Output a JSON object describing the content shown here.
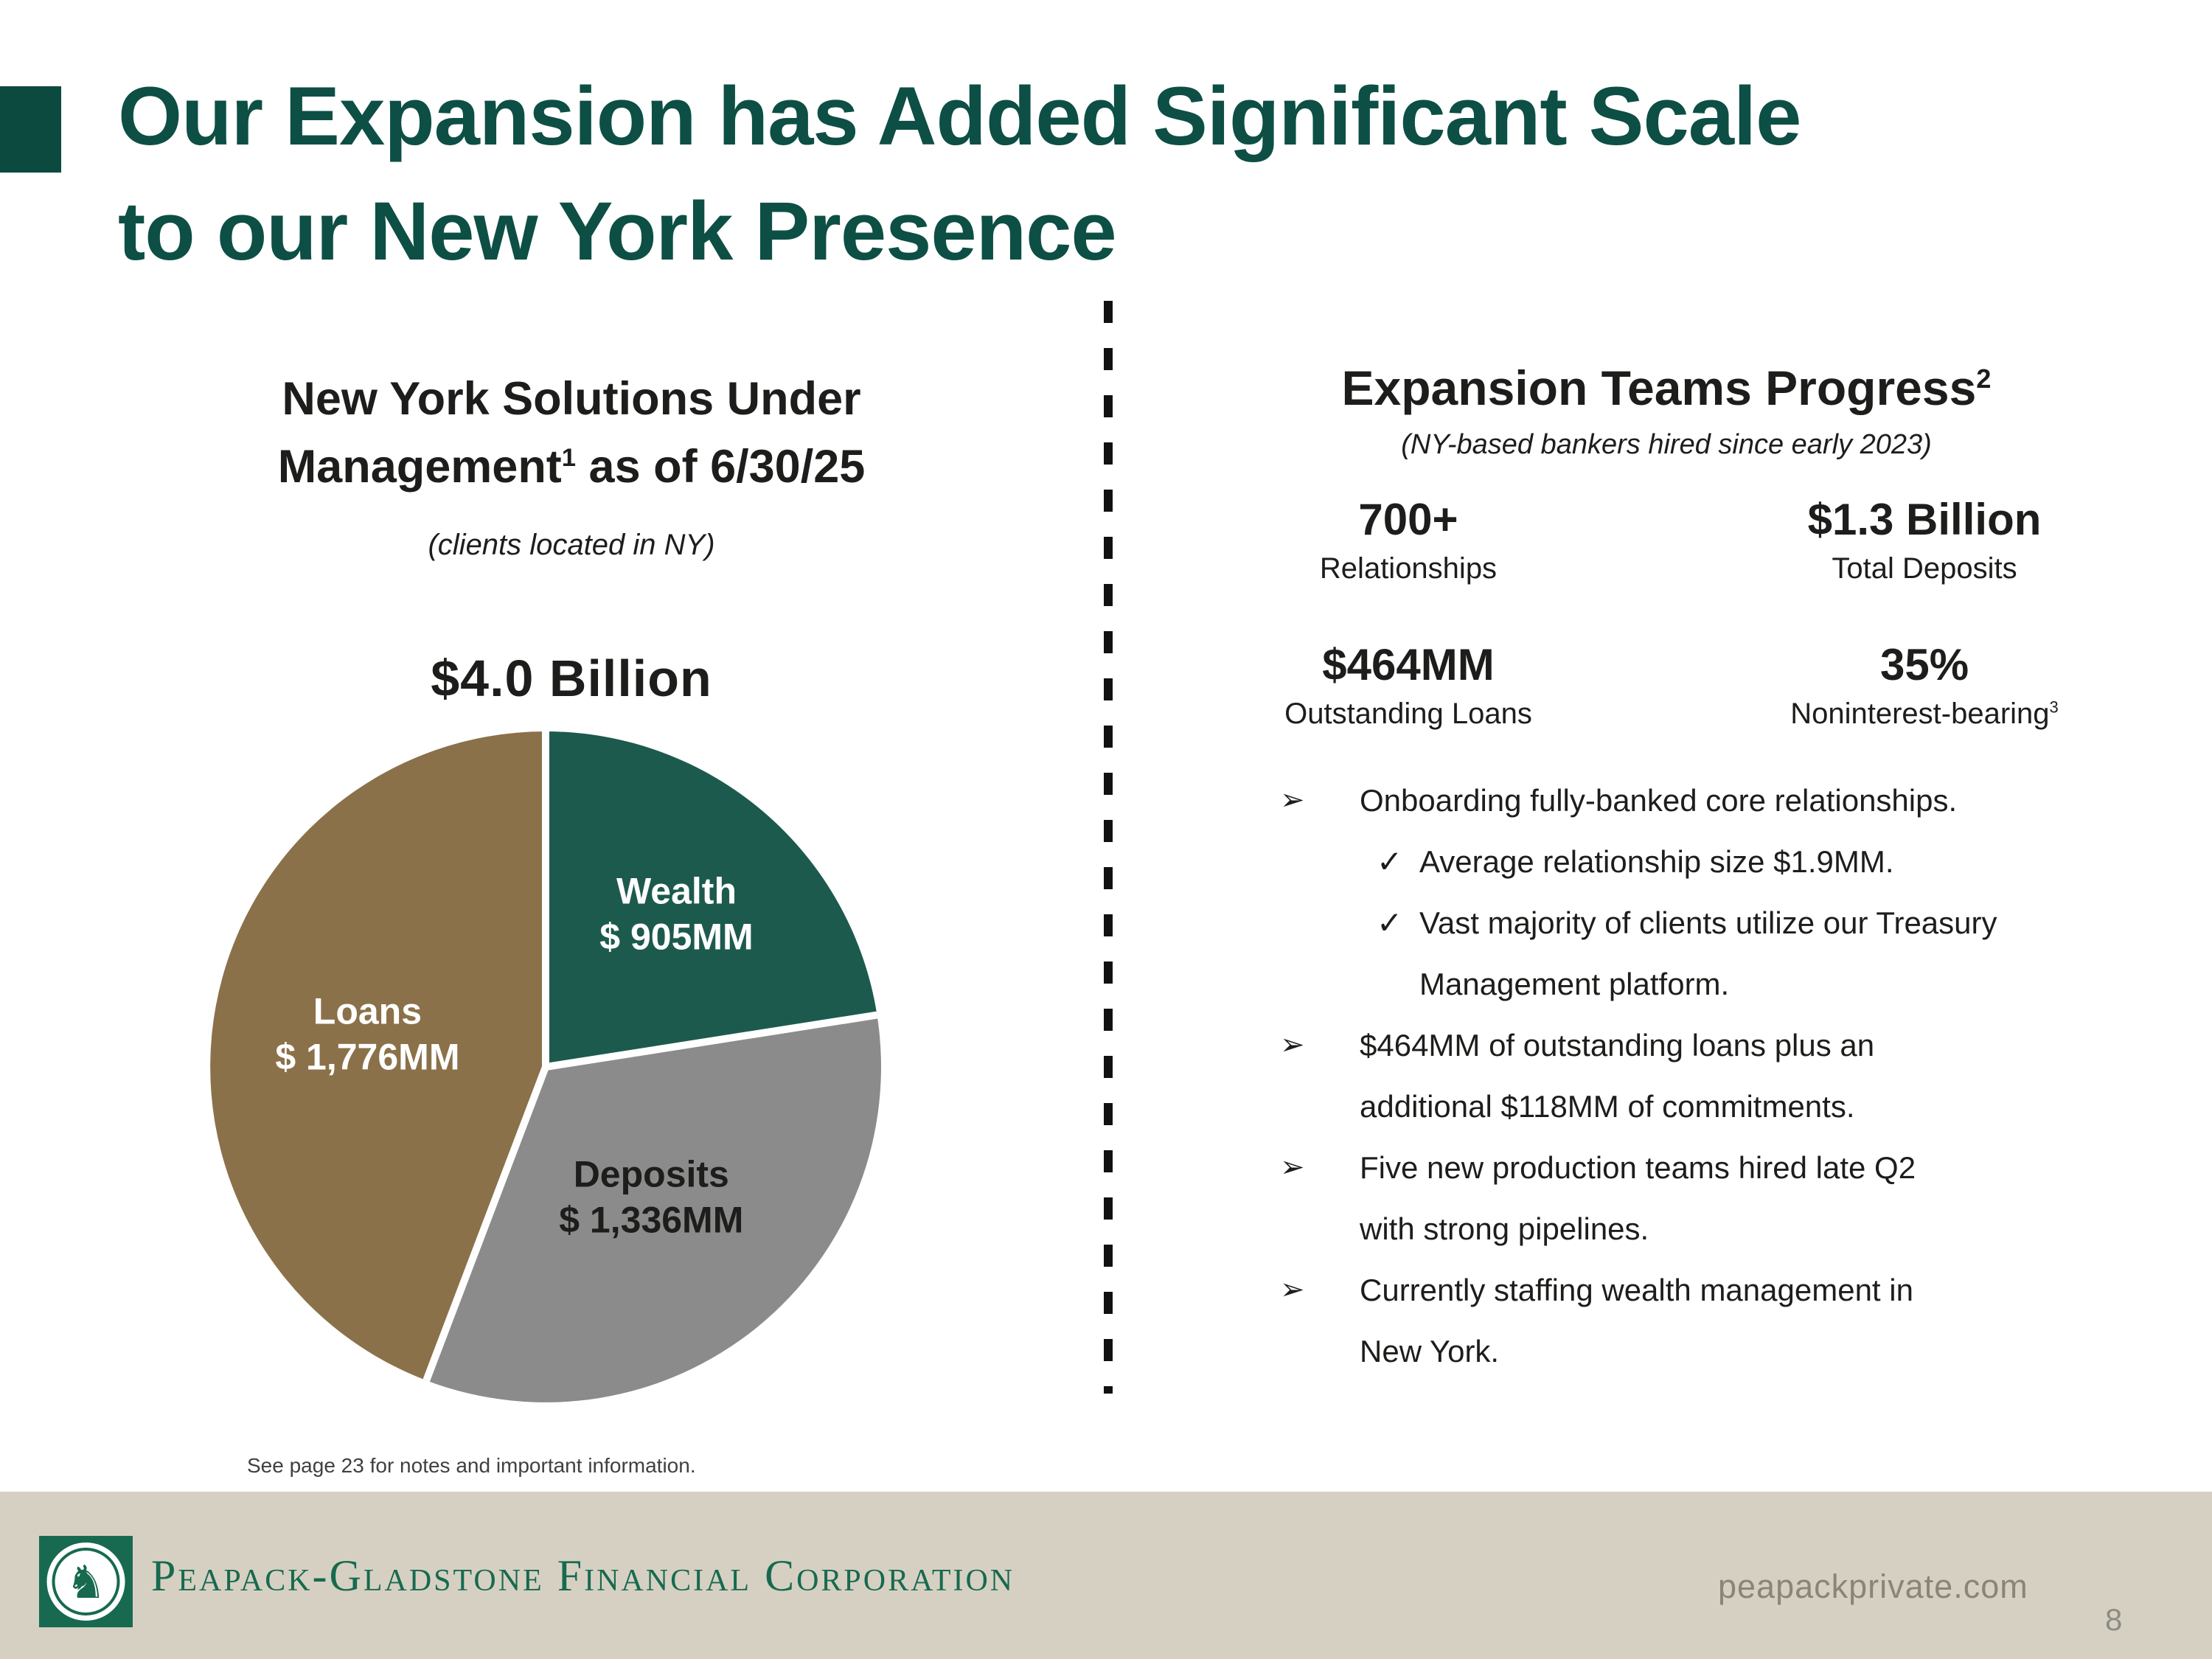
{
  "slide": {
    "title_line1": "Our Expansion has Added Significant Scale",
    "title_line2": "to our New York Presence",
    "page_number": "8"
  },
  "colors": {
    "title_green": "#0d4f44",
    "accent_green": "#0c4a40",
    "brand_green": "#176a4f",
    "pie_green": "#1d5a4e",
    "pie_gray": "#8c8b8b",
    "pie_brown": "#8b7149",
    "footer_beige": "#d6d0c3",
    "footer_text_gray": "#8b8578"
  },
  "left_panel": {
    "heading_line1": "New York Solutions Under",
    "heading_line2_pre": "Management",
    "heading_sup": "1",
    "heading_line2_post": " as of 6/30/25",
    "subheading": "(clients located in NY)"
  },
  "chart_data": {
    "type": "pie",
    "title": "$4.0 Billion",
    "units": "USD MM",
    "start_angle_deg": 0,
    "direction": "clockwise",
    "total_label": "$4.0 Billion",
    "slices": [
      {
        "label": "Wealth",
        "value": 905,
        "value_label": "$ 905MM",
        "color": "#1d5a4e",
        "text_color": "#ffffff"
      },
      {
        "label": "Deposits",
        "value": 1336,
        "value_label": "$ 1,336MM",
        "color": "#8c8b8b",
        "text_color": "#1d1d1b"
      },
      {
        "label": "Loans",
        "value": 1776,
        "value_label": "$ 1,776MM",
        "color": "#8b7149",
        "text_color": "#ffffff"
      }
    ]
  },
  "right_panel": {
    "heading": "Expansion Teams Progress",
    "heading_sup": "2",
    "subheading": "(NY-based bankers hired since early 2023)",
    "stats": [
      {
        "value": "700+",
        "label": "Relationships",
        "label_sup": ""
      },
      {
        "value": "$1.3 Billion",
        "label": "Total Deposits",
        "label_sup": ""
      },
      {
        "value": "$464MM",
        "label": "Outstanding Loans",
        "label_sup": ""
      },
      {
        "value": "35%",
        "label": "Noninterest-bearing",
        "label_sup": "3"
      }
    ],
    "bullets": [
      {
        "level": 1,
        "marker": "➢",
        "text": "Onboarding fully-banked core relationships."
      },
      {
        "level": 2,
        "marker": "✓",
        "text": "Average relationship size $1.9MM."
      },
      {
        "level": 2,
        "marker": "✓",
        "text": "Vast majority of clients utilize our Treasury Management platform."
      },
      {
        "level": 1,
        "marker": "➢",
        "text": "$464MM of outstanding loans plus an additional $118MM of commitments."
      },
      {
        "level": 1,
        "marker": "➢",
        "text": "Five new production teams hired late Q2 with strong pipelines."
      },
      {
        "level": 1,
        "marker": "➢",
        "text": "Currently staffing wealth management in New York."
      }
    ]
  },
  "footer": {
    "footnote": "See page 23 for notes and important information.",
    "brand": "Peapack-Gladstone Financial Corporation",
    "website": "peapackprivate.com",
    "horse_icon": "♞"
  }
}
